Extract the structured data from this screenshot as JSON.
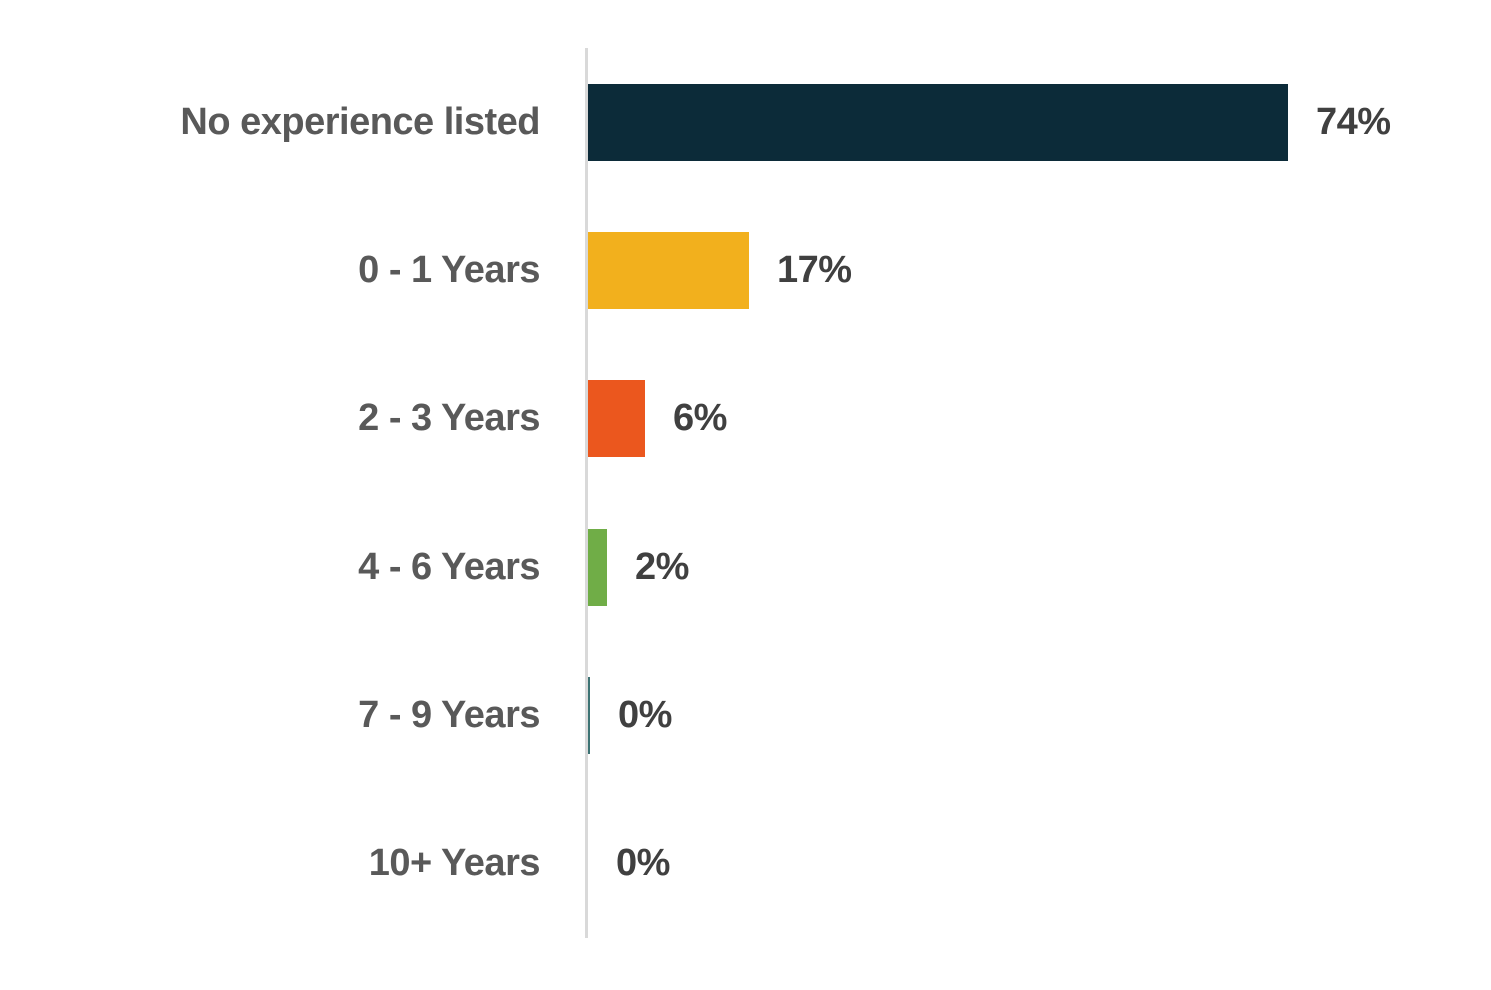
{
  "chart_data": {
    "type": "bar",
    "orientation": "horizontal",
    "title": "",
    "categories": [
      "No experience listed",
      "0 - 1 Years",
      "2 - 3 Years",
      "4 - 6 Years",
      "7 - 9 Years",
      "10+ Years"
    ],
    "values": [
      74,
      17,
      6,
      2,
      0.2,
      0
    ],
    "value_labels": [
      "74%",
      "17%",
      "6%",
      "2%",
      "0%",
      "0%"
    ],
    "bar_colors": [
      "#0c2b39",
      "#f2b01d",
      "#eb571e",
      "#70ad47",
      "#3d7374",
      "#0c2b39"
    ],
    "xlim": [
      0,
      95
    ],
    "grid": false,
    "legend": false,
    "axis_line_color": "#d9d9d9",
    "category_label_color": "#595959",
    "value_label_color": "#404040",
    "background_color": "#ffffff"
  }
}
